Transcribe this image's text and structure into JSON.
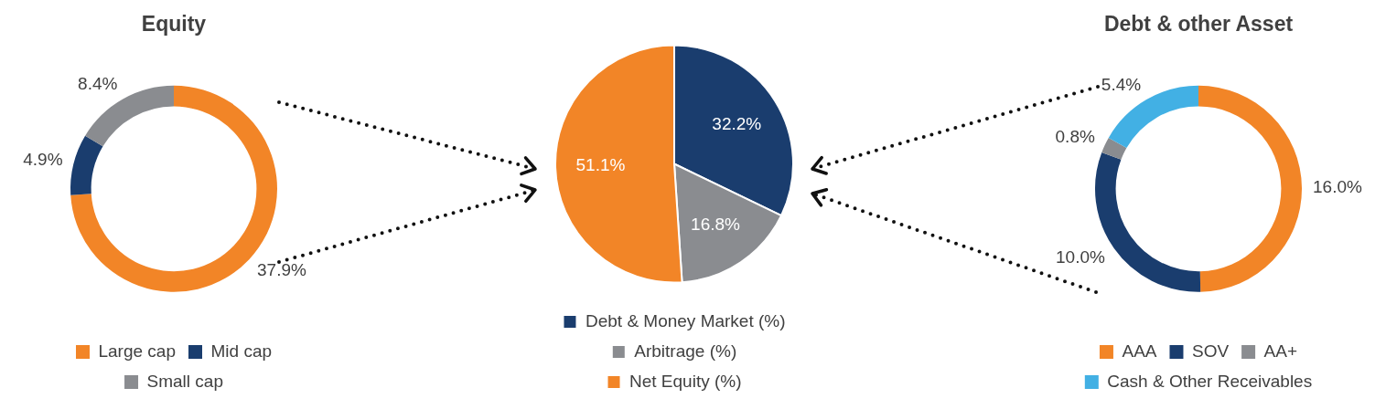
{
  "chart_data": [
    {
      "type": "donut",
      "title": "Equity",
      "categories": [
        "Large cap",
        "Mid cap",
        "Small cap"
      ],
      "values": [
        37.9,
        4.9,
        8.4
      ],
      "colors": [
        "#f28527",
        "#1a3d6e",
        "#8a8c90"
      ],
      "value_labels": [
        "37.9%",
        "4.9%",
        "8.4%"
      ],
      "legend": "bottom"
    },
    {
      "type": "pie",
      "categories": [
        "Debt & Money Market (%)",
        "Arbitrage (%)",
        "Net Equity (%)"
      ],
      "values": [
        32.2,
        16.8,
        51.1
      ],
      "colors": [
        "#1a3d6e",
        "#8a8c90",
        "#f28527"
      ],
      "value_labels": [
        "32.2%",
        "16.8%",
        "51.1%"
      ],
      "legend": "bottom"
    },
    {
      "type": "donut",
      "title": "Debt & other Asset",
      "categories": [
        "AAA",
        "SOV",
        "AA+",
        "Cash & Other Receivables"
      ],
      "values": [
        16.0,
        10.0,
        0.8,
        5.4
      ],
      "colors": [
        "#f28527",
        "#1a3d6e",
        "#8a8c90",
        "#42b0e4"
      ],
      "value_labels": [
        "16.0%",
        "10.0%",
        "0.8%",
        "5.4%"
      ],
      "legend": "bottom"
    }
  ]
}
